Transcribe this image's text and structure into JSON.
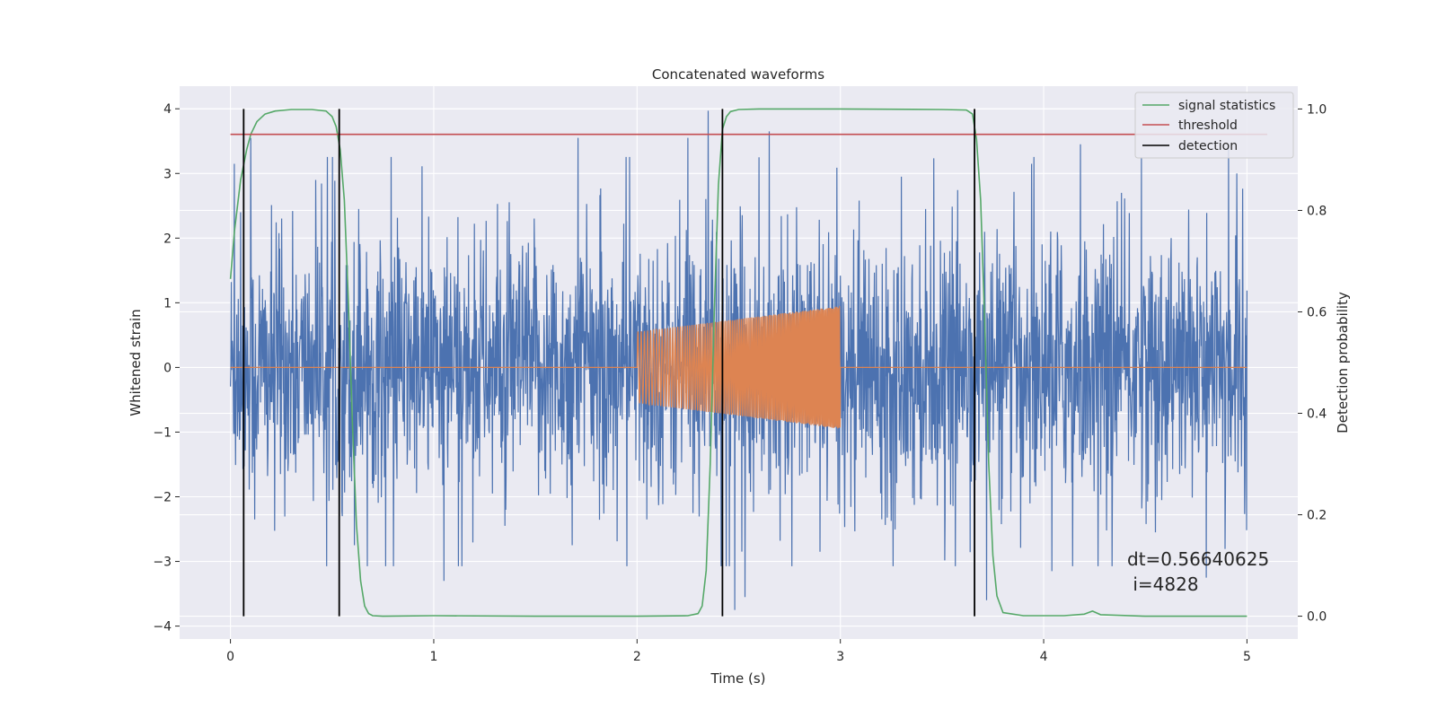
{
  "chart_data": {
    "type": "line",
    "title": "Concatenated waveforms",
    "xlabel": "Time (s)",
    "ylabel": "Whitened strain",
    "y2label": "Detection probability",
    "xlim": [
      -0.25,
      5.25
    ],
    "ylim": [
      -4.2,
      4.35
    ],
    "y2lim": [
      -0.045,
      1.045
    ],
    "xticks": [
      0,
      1,
      2,
      3,
      4,
      5
    ],
    "yticks": [
      -4,
      -3,
      -2,
      -1,
      0,
      1,
      2,
      3,
      4
    ],
    "y2ticks": [
      0.0,
      0.2,
      0.4,
      0.6,
      0.8,
      1.0
    ],
    "xtick_labels": [
      "0",
      "1",
      "2",
      "3",
      "4",
      "5"
    ],
    "ytick_labels": [
      "−4",
      "−3",
      "−2",
      "−1",
      "0",
      "1",
      "2",
      "3",
      "4"
    ],
    "y2tick_labels": [
      "0.0",
      "0.2",
      "0.4",
      "0.6",
      "0.8",
      "1.0"
    ],
    "grid": true,
    "legend_position": "top-right",
    "noise": {
      "color": "#4c72b0",
      "t_start": 0,
      "t_end": 5,
      "approx_range": [
        -3.75,
        3.97
      ],
      "peaks": [
        {
          "t": 0.02,
          "y": 3.15
        },
        {
          "t": 0.05,
          "y": 2.4
        },
        {
          "t": 0.1,
          "y": 3.55
        },
        {
          "t": 0.12,
          "y": -2.35
        },
        {
          "t": 0.42,
          "y": 2.9
        },
        {
          "t": 0.55,
          "y": -2.3
        },
        {
          "t": 0.61,
          "y": -2.75
        },
        {
          "t": 0.63,
          "y": 2.45
        },
        {
          "t": 1.05,
          "y": -3.3
        },
        {
          "t": 1.35,
          "y": -2.45
        },
        {
          "t": 1.68,
          "y": -2.75
        },
        {
          "t": 1.71,
          "y": 3.55
        },
        {
          "t": 2.25,
          "y": 3.55
        },
        {
          "t": 2.35,
          "y": 3.97
        },
        {
          "t": 2.48,
          "y": -3.75
        },
        {
          "t": 2.53,
          "y": -3.55
        },
        {
          "t": 2.6,
          "y": 3.25
        },
        {
          "t": 2.65,
          "y": 3.65
        },
        {
          "t": 2.9,
          "y": -2.85
        },
        {
          "t": 3.3,
          "y": 2.95
        },
        {
          "t": 3.66,
          "y": -3.0
        },
        {
          "t": 3.72,
          "y": -3.6
        },
        {
          "t": 3.94,
          "y": 3.15
        },
        {
          "t": 4.04,
          "y": -3.15
        },
        {
          "t": 4.18,
          "y": 3.45
        },
        {
          "t": 4.48,
          "y": 3.25
        },
        {
          "t": 4.55,
          "y": -2.55
        },
        {
          "t": 4.8,
          "y": -3.25
        },
        {
          "t": 4.91,
          "y": 3.45
        },
        {
          "t": 4.95,
          "y": 3.0
        }
      ]
    },
    "chirp": {
      "color": "#dd8452",
      "t_start": 2.0,
      "t_end": 3.0,
      "amp_start": 0.55,
      "amp_end": 0.95,
      "flat_outside": 0.0
    },
    "series": [
      {
        "name": "signal statistics",
        "color": "#55a868",
        "axis": "right",
        "x": [
          0.0,
          0.02,
          0.05,
          0.08,
          0.1,
          0.13,
          0.17,
          0.22,
          0.3,
          0.4,
          0.47,
          0.5,
          0.52,
          0.54,
          0.56,
          0.58,
          0.6,
          0.62,
          0.64,
          0.66,
          0.68,
          0.7,
          0.75,
          1.0,
          1.5,
          2.0,
          2.25,
          2.3,
          2.32,
          2.34,
          2.36,
          2.38,
          2.4,
          2.42,
          2.44,
          2.46,
          2.5,
          2.6,
          3.0,
          3.5,
          3.62,
          3.65,
          3.67,
          3.69,
          3.71,
          3.73,
          3.75,
          3.77,
          3.8,
          3.9,
          4.1,
          4.2,
          4.24,
          4.28,
          4.5,
          5.0
        ],
        "y": [
          0.665,
          0.76,
          0.86,
          0.92,
          0.95,
          0.975,
          0.99,
          0.996,
          0.999,
          0.999,
          0.996,
          0.985,
          0.965,
          0.92,
          0.82,
          0.62,
          0.38,
          0.18,
          0.07,
          0.02,
          0.005,
          0.001,
          0.0,
          0.001,
          0.0,
          0.0,
          0.001,
          0.005,
          0.02,
          0.09,
          0.3,
          0.6,
          0.85,
          0.96,
          0.985,
          0.995,
          0.999,
          1.0,
          1.0,
          0.999,
          0.998,
          0.99,
          0.94,
          0.82,
          0.58,
          0.3,
          0.12,
          0.04,
          0.007,
          0.001,
          0.001,
          0.004,
          0.01,
          0.003,
          0.0,
          0.0
        ]
      },
      {
        "name": "threshold",
        "color": "#c44e52",
        "axis": "right",
        "x": [
          0.0,
          5.1
        ],
        "y": [
          0.95,
          0.95
        ]
      },
      {
        "name": "detection",
        "color": "#000000",
        "axis": "right",
        "vlines": [
          0.065,
          0.535,
          2.42,
          3.66
        ],
        "ymin": 0.0,
        "ymax": 1.0
      }
    ],
    "annotation": {
      "line1": "dt=0.56640625",
      "line2": " i=4828",
      "x": 4.5,
      "y": -3.0
    }
  }
}
